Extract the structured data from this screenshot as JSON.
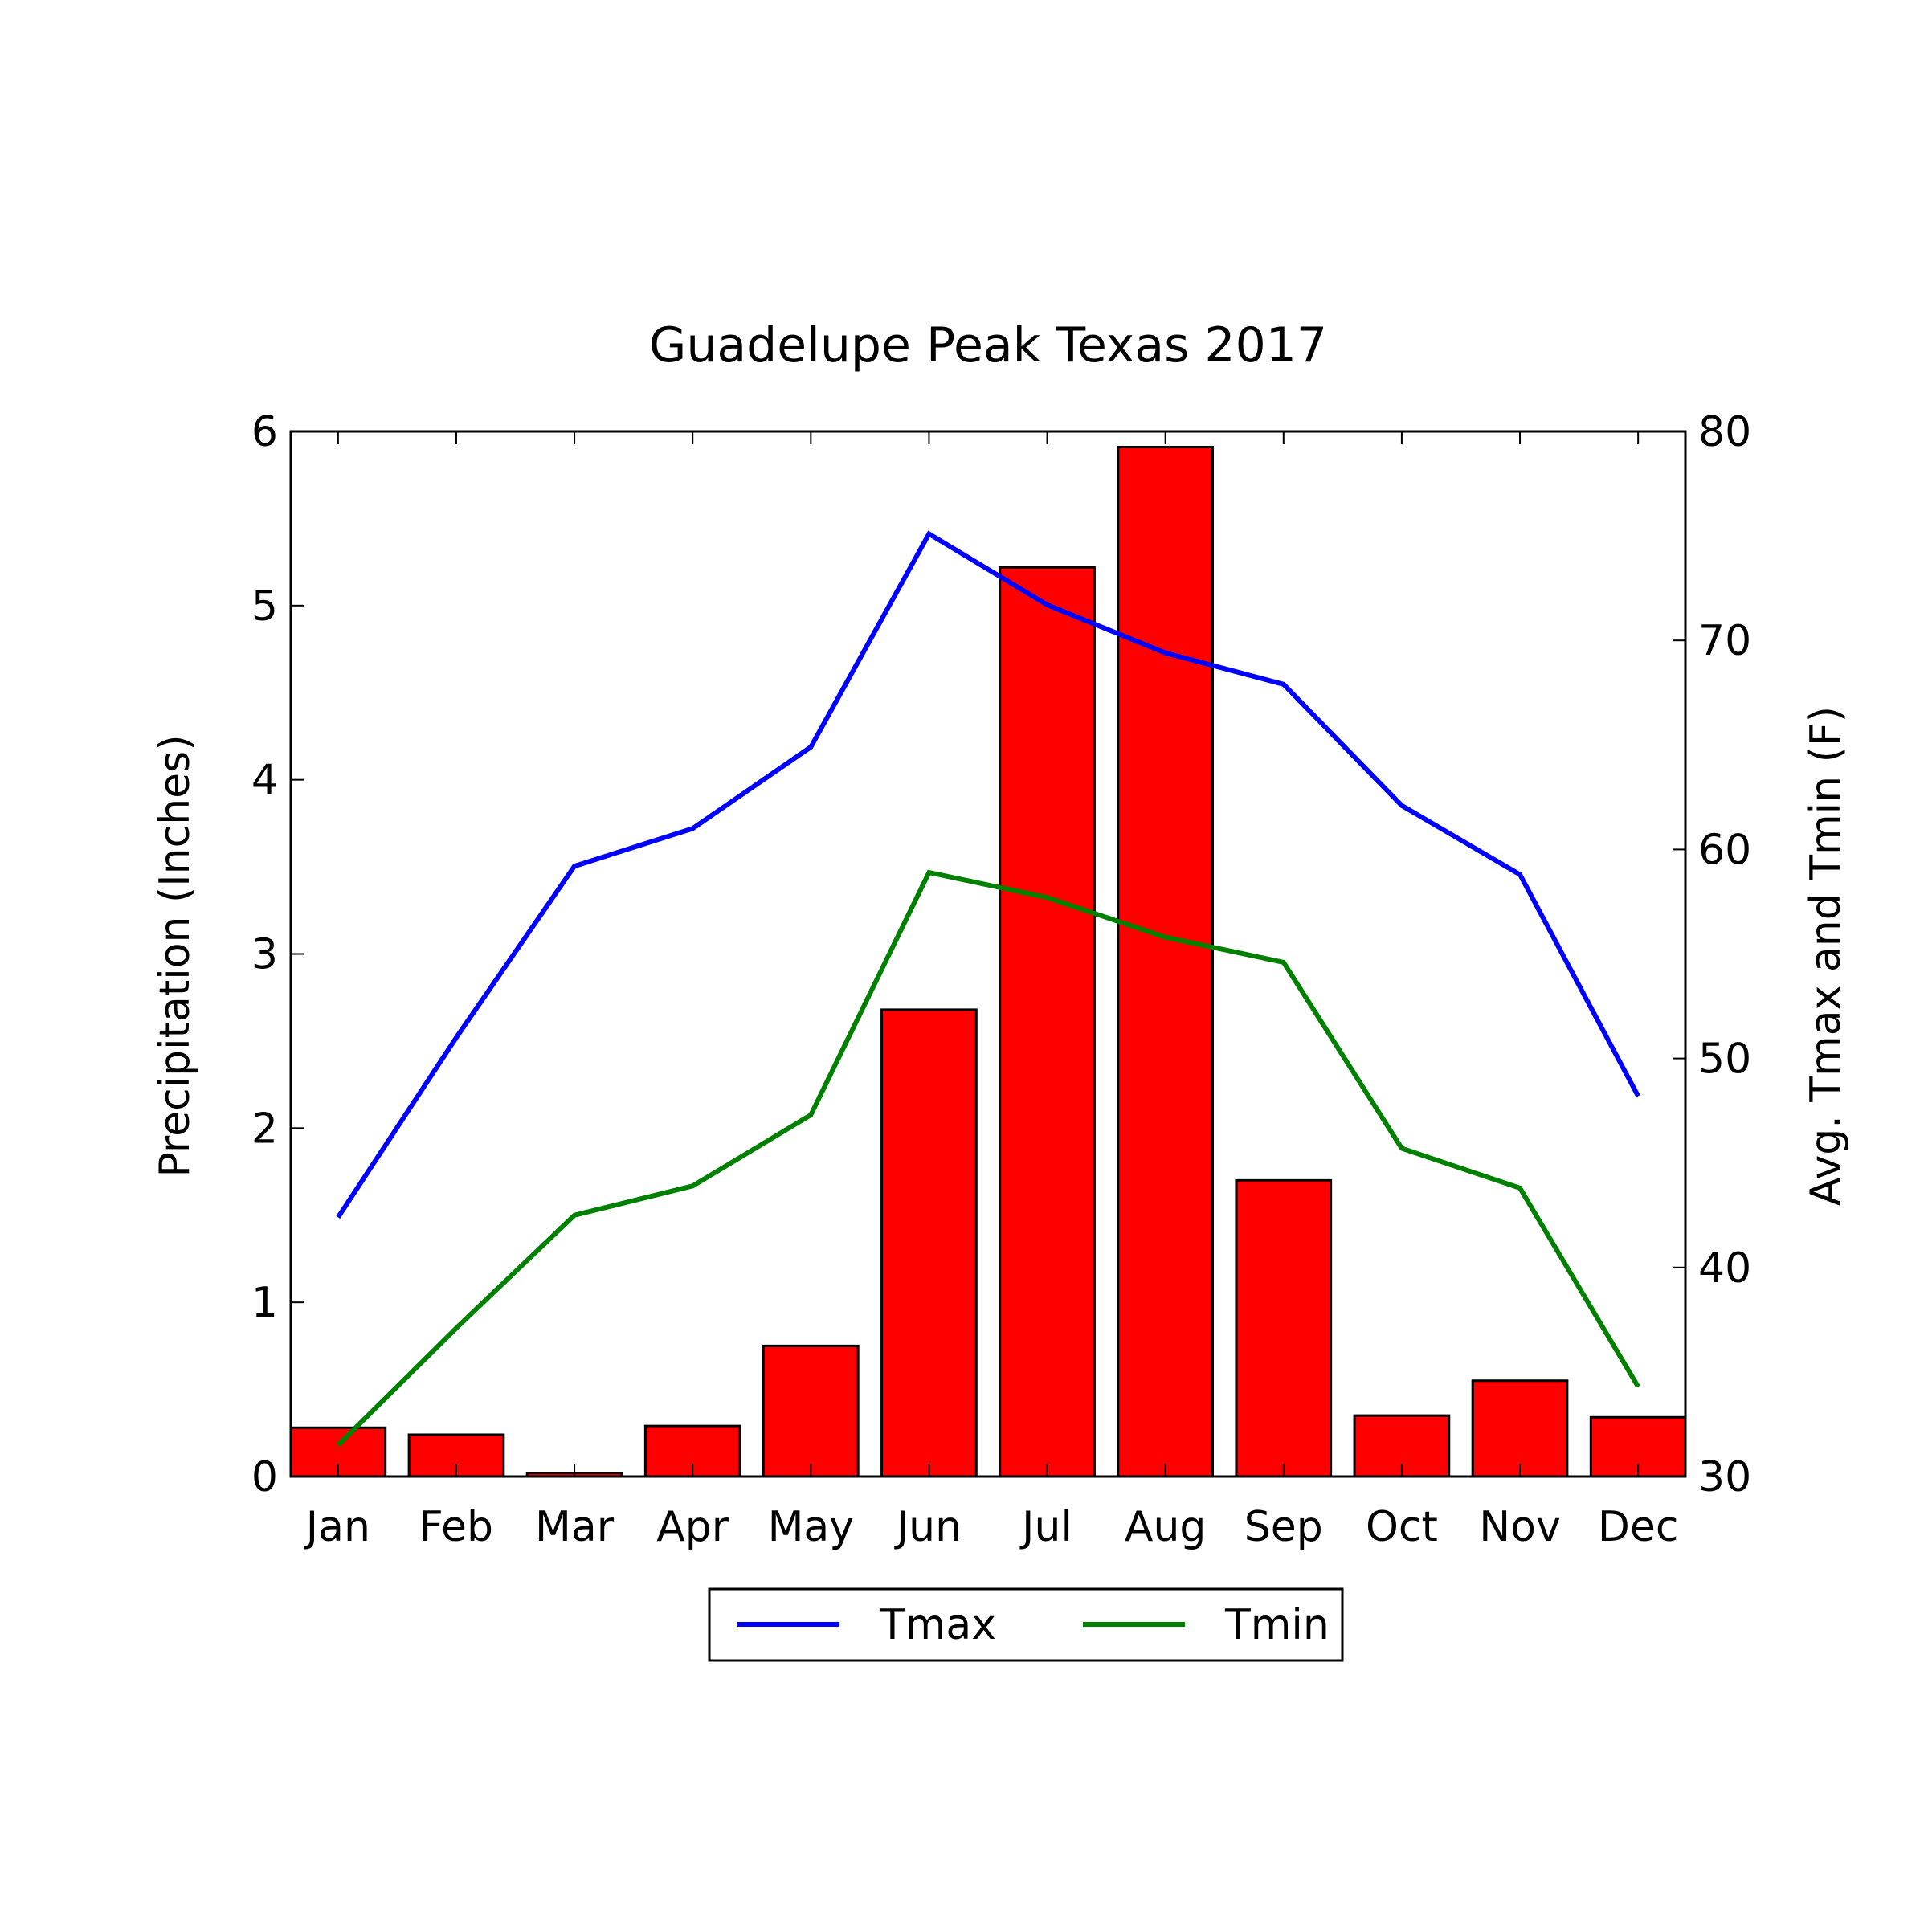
{
  "chart_data": {
    "type": "bar",
    "title": "Guadelupe Peak Texas 2017",
    "categories": [
      "Jan",
      "Feb",
      "Mar",
      "Apr",
      "May",
      "Jun",
      "Jul",
      "Aug",
      "Sep",
      "Oct",
      "Nov",
      "Dec"
    ],
    "bars": {
      "name": "Precipitation",
      "axis": "left",
      "color": "#ff0000",
      "edge_color": "#000000",
      "values": [
        0.28,
        0.24,
        0.02,
        0.29,
        0.75,
        2.68,
        5.22,
        5.91,
        1.7,
        0.35,
        0.55,
        0.34
      ]
    },
    "series": [
      {
        "name": "Tmax",
        "axis": "right",
        "color": "#0000ff",
        "values": [
          42.4,
          51.0,
          59.2,
          61.0,
          64.9,
          75.1,
          71.7,
          69.4,
          67.9,
          62.1,
          58.8,
          48.2
        ]
      },
      {
        "name": "Tmin",
        "axis": "right",
        "color": "#008000",
        "values": [
          31.5,
          37.1,
          42.5,
          43.9,
          47.3,
          58.9,
          57.7,
          55.8,
          54.6,
          45.7,
          43.8,
          34.3
        ]
      }
    ],
    "ylabel": "Precipitation (Inches)",
    "ylim": [
      0,
      6
    ],
    "yticks": [
      "0",
      "1",
      "2",
      "3",
      "4",
      "5",
      "6"
    ],
    "y2label": "Avg. Tmax and Tmin (F)",
    "y2lim": [
      30,
      80
    ],
    "y2ticks": [
      "30",
      "40",
      "50",
      "60",
      "70",
      "80"
    ],
    "grid": false,
    "legend": {
      "placement": "bottom-center",
      "entries": [
        "Tmax",
        "Tmin"
      ]
    }
  }
}
